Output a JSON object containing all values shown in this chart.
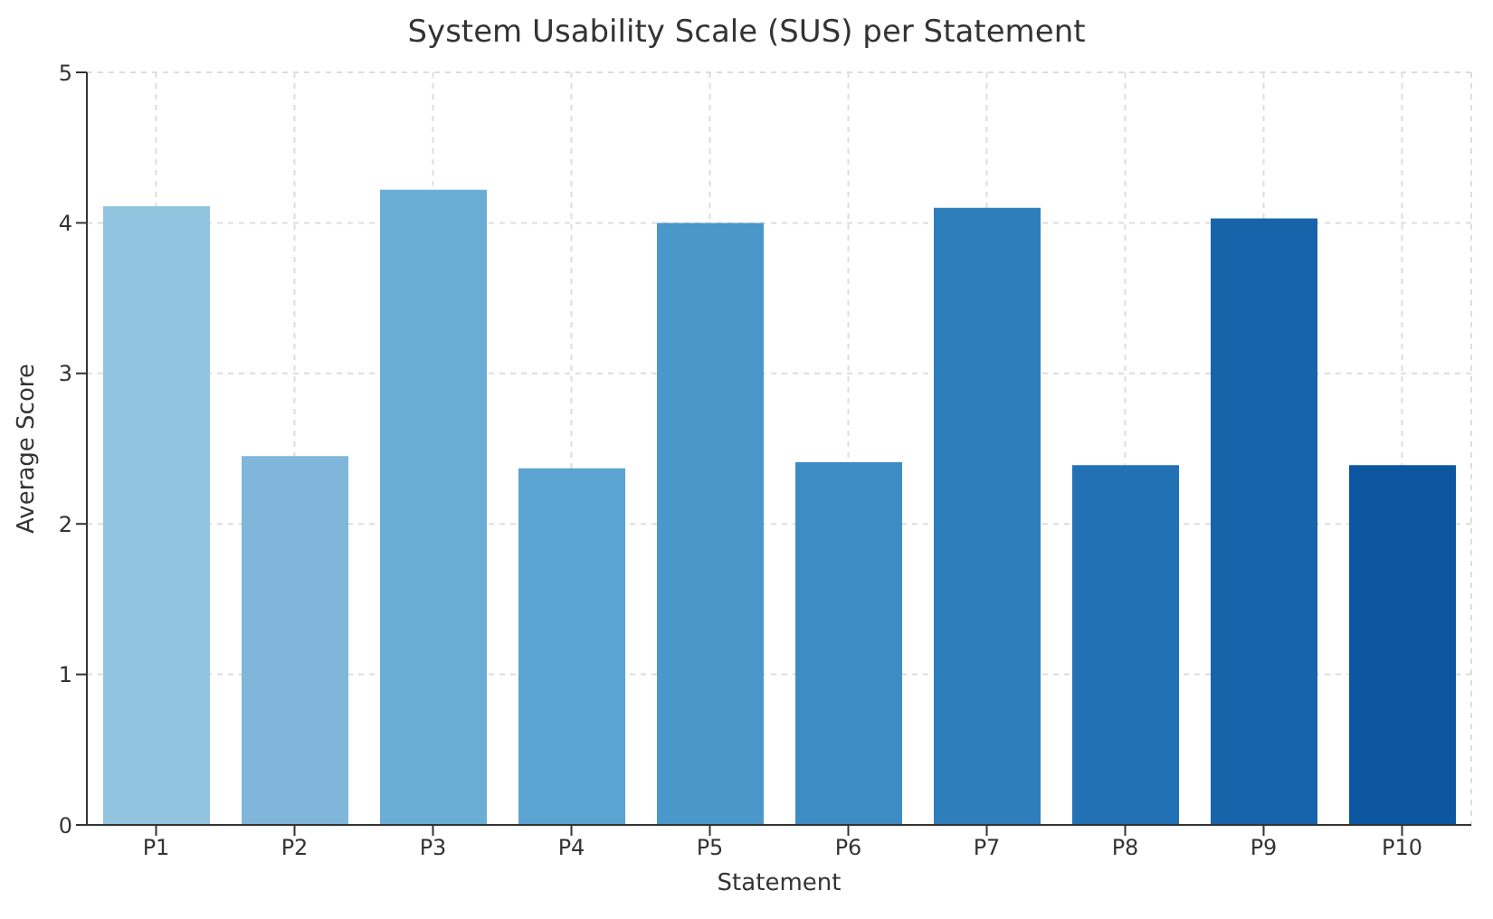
{
  "chart_data": {
    "type": "bar",
    "title": "System Usability Scale (SUS) per Statement",
    "xlabel": "Statement",
    "ylabel": "Average Score",
    "categories": [
      "P1",
      "P2",
      "P3",
      "P4",
      "P5",
      "P6",
      "P7",
      "P8",
      "P9",
      "P10"
    ],
    "values": [
      4.11,
      2.45,
      4.22,
      2.37,
      4.0,
      2.41,
      4.1,
      2.39,
      4.03,
      2.39
    ],
    "colors": [
      "#93c4df",
      "#7fb6da",
      "#6aaed6",
      "#5ba3d0",
      "#4a98c9",
      "#3d8dc4",
      "#2f7ebc",
      "#2271b5",
      "#1764ab",
      "#0c56a0"
    ],
    "ylim": [
      0,
      5
    ],
    "yticks": [
      0,
      1,
      2,
      3,
      4,
      5
    ],
    "grid": true,
    "line_style": "dashed"
  }
}
